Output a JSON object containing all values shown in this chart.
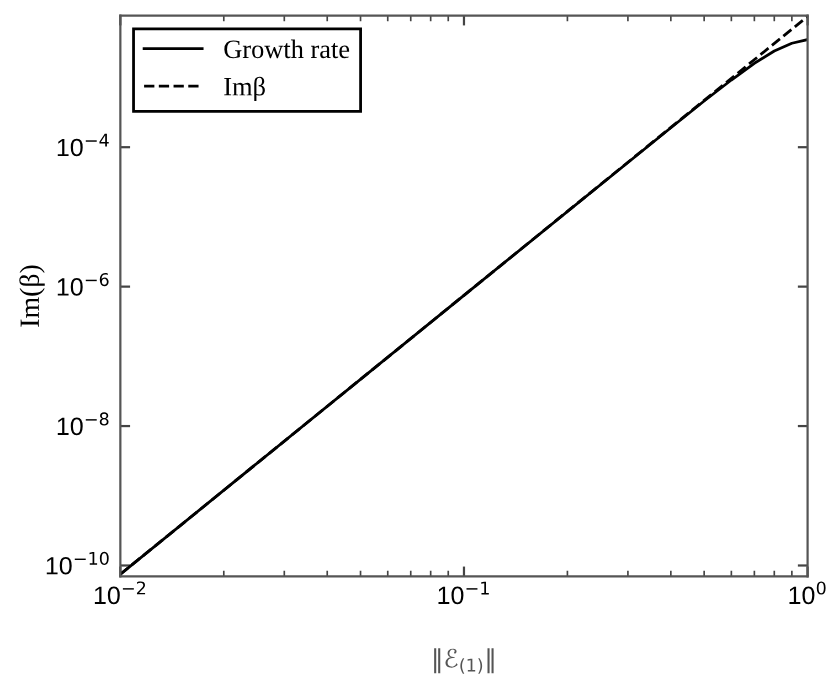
{
  "chart_data": {
    "type": "line",
    "xlabel": "‖ℰ$_{(1)}$‖",
    "ylabel": "Im(β)",
    "log": "xy",
    "xlim": [
      0.01,
      1
    ],
    "ylim": [
      7e-11,
      0.0077
    ],
    "xticks": [
      {
        "value": 0.01,
        "label": "10$^{−2}$"
      },
      {
        "value": 0.1,
        "label": "10$^{−1}$"
      },
      {
        "value": 1,
        "label": "10$^{0}$"
      }
    ],
    "yticks": [
      {
        "value": 1e-10,
        "label": "10$^{−10}$"
      },
      {
        "value": 1e-08,
        "label": "10$^{−8}$"
      },
      {
        "value": 1e-06,
        "label": "10$^{−6}$"
      },
      {
        "value": 0.0001,
        "label": "10$^{−4}$"
      }
    ],
    "legend": "top left",
    "grid": false,
    "series": [
      {
        "name": "Growth rate",
        "color": "#000000",
        "line_style": "solid",
        "x": [
          0.01,
          0.1,
          0.4,
          0.5,
          0.6,
          0.7,
          0.8,
          0.9,
          1.0
        ],
        "values": [
          7.5e-11,
          7.5e-07,
          0.00019,
          0.00046,
          0.00092,
          0.0016,
          0.0024,
          0.0031,
          0.0035
        ]
      },
      {
        "name": "Imβ",
        "color": "#000000",
        "line_style": "dashed",
        "x": [
          0.01,
          0.1,
          0.5,
          1.0
        ],
        "values": [
          7.5e-11,
          7.5e-07,
          0.00047,
          0.0075
        ]
      }
    ]
  }
}
